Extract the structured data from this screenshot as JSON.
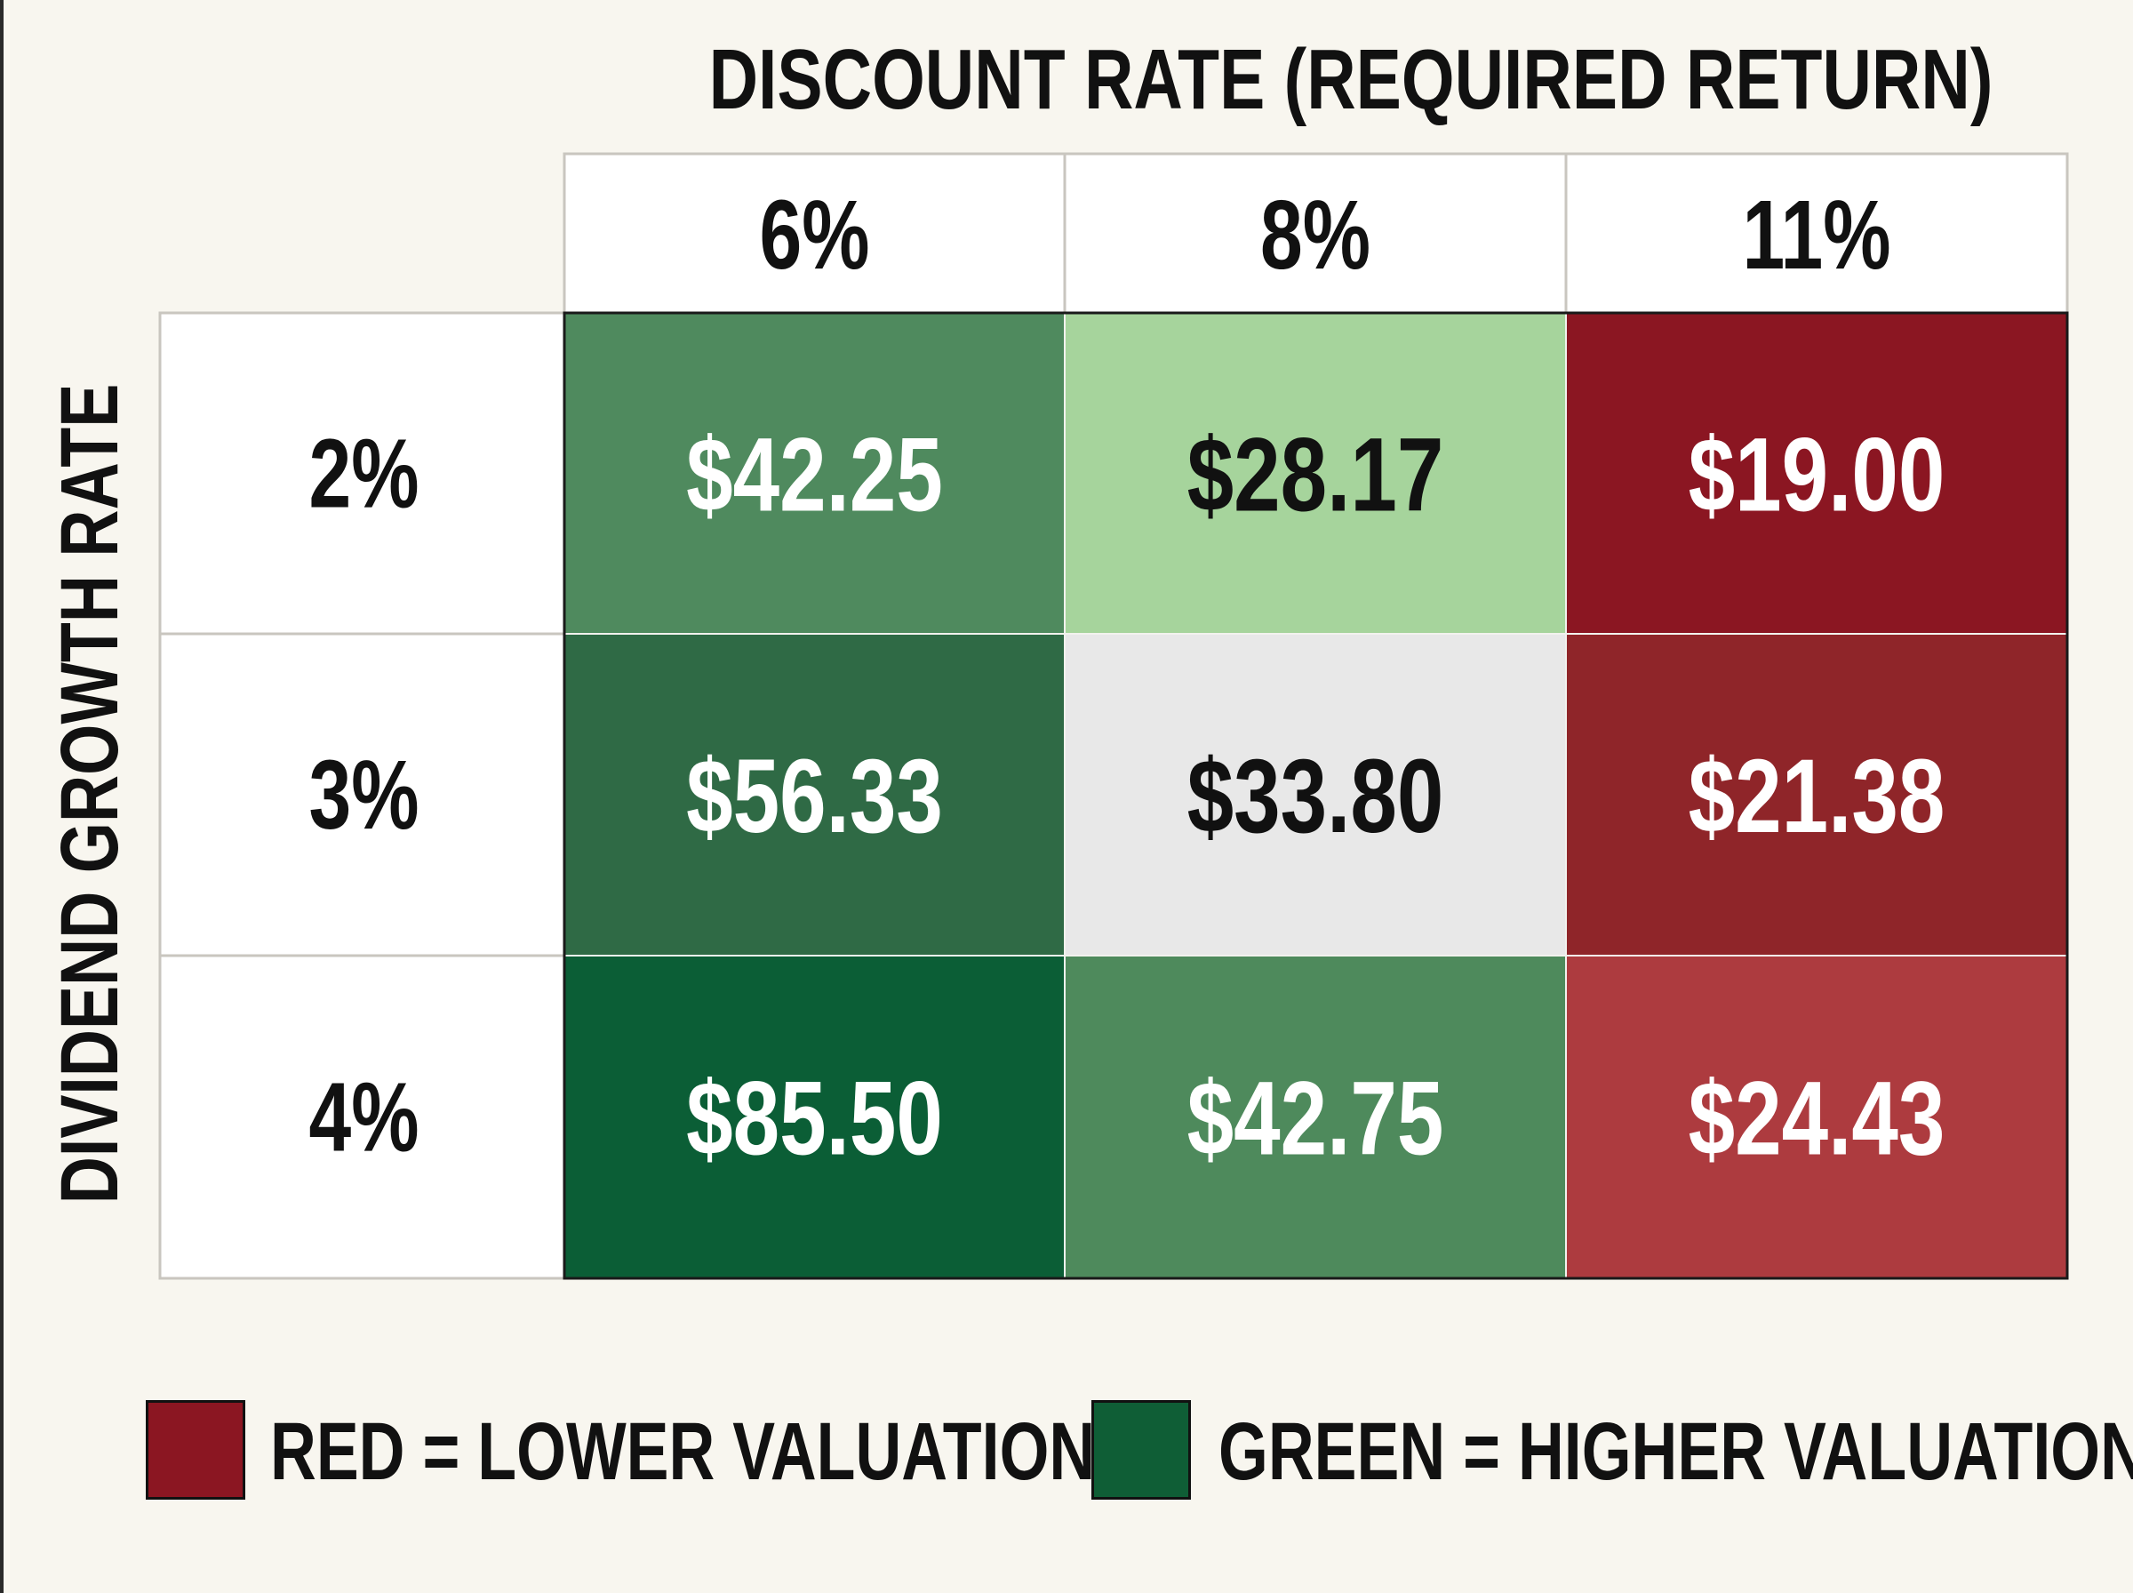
{
  "chart_data": {
    "type": "heatmap",
    "xlabel": "DISCOUNT RATE (REQUIRED RETURN)",
    "ylabel": "DIVIDEND GROWTH RATE",
    "x_categories": [
      "6%",
      "8%",
      "11%"
    ],
    "y_categories": [
      "2%",
      "3%",
      "4%"
    ],
    "cells": [
      [
        "$42.25",
        "$28.17",
        "$19.00"
      ],
      [
        "$56.33",
        "$33.80",
        "$21.38"
      ],
      [
        "$85.50",
        "$42.75",
        "$24.43"
      ]
    ],
    "values": [
      [
        42.25,
        28.17,
        19.0
      ],
      [
        56.33,
        33.8,
        21.38
      ],
      [
        85.5,
        42.75,
        24.43
      ]
    ],
    "cell_colors": [
      [
        "#4f8a5e",
        "#a6d49c",
        "#8b1622"
      ],
      [
        "#2f6a45",
        "#e8e8e8",
        "#8f2529"
      ],
      [
        "#0b5e36",
        "#4e8a5c",
        "#ad3b3f"
      ]
    ],
    "text_colors": [
      [
        "#ffffff",
        "#111111",
        "#ffffff"
      ],
      [
        "#ffffff",
        "#111111",
        "#ffffff"
      ],
      [
        "#ffffff",
        "#ffffff",
        "#ffffff"
      ]
    ],
    "legend": [
      {
        "label": "RED = LOWER VALUATION",
        "color": "#8b1622"
      },
      {
        "label": "GREEN = HIGHER VALUATION",
        "color": "#0f5e36"
      }
    ],
    "legend_position": "bottom"
  }
}
